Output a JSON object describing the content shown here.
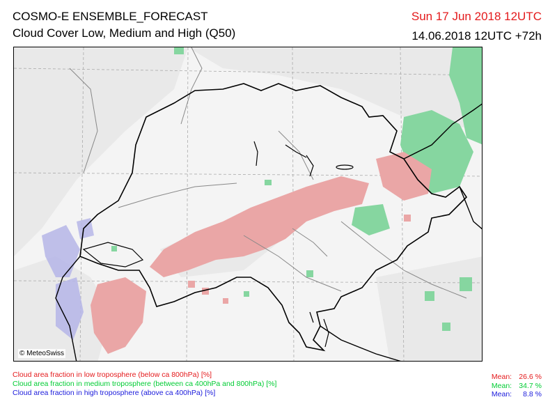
{
  "header": {
    "title": "COSMO-E ENSEMBLE_FORECAST",
    "subtitle": "Cloud Cover Low, Medium and High (Q50)",
    "valid_time": "Sun 17 Jun 2018 12UTC",
    "run_time": "14.06.2018 12UTC +72h"
  },
  "map": {
    "credit": "© MeteoSwiss",
    "colors": {
      "low": "#e8a0a0",
      "medium": "#7fd49a",
      "high": "#b4b4e6",
      "background_cloud": "#e8e8e8",
      "border": "#000000",
      "boundary": "#888888"
    }
  },
  "legend": {
    "items": [
      {
        "label": "Cloud area fraction in low troposphere (below ca 800hPa) [%]",
        "mean_label": "Mean:",
        "mean_value": "26.6 %",
        "color": "#e41a1c"
      },
      {
        "label": "Cloud area fraction in medium troposphere (between ca 400hPa and 800hPa) [%]",
        "mean_label": "Mean:",
        "mean_value": "34.7 %",
        "color": "#00cc33"
      },
      {
        "label": "Cloud area fraction in high troposphere (above ca 400hPa) [%]",
        "mean_label": "Mean:",
        "mean_value": "8.8 %",
        "color": "#1a1adb"
      }
    ]
  }
}
